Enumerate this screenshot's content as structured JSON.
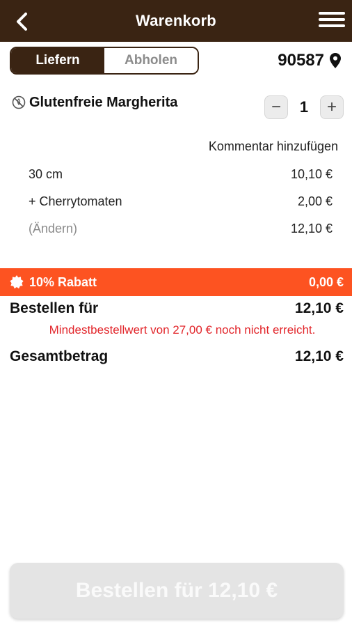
{
  "header": {
    "title": "Warenkorb",
    "back_icon": "chevron-left-icon",
    "menu_icon": "hamburger-menu-icon"
  },
  "delivery_toggle": {
    "options": [
      "Liefern",
      "Abholen"
    ],
    "selected": "Liefern"
  },
  "location": {
    "zip": "90587",
    "icon": "location-pin-icon"
  },
  "item": {
    "name": "Glutenfreie Margherita",
    "icon": "gluten-free-icon",
    "quantity": "1",
    "decrement_label": "−",
    "increment_label": "+",
    "comment_link": "Kommentar hinzufügen",
    "lines": [
      {
        "label": "30 cm",
        "price": "10,10 €"
      },
      {
        "label": "+ Cherrytomaten",
        "price": "2,00 €"
      },
      {
        "label": "(Ändern)",
        "price": "12,10 €"
      }
    ]
  },
  "discount": {
    "icon": "discount-badge-icon",
    "label": "10% Rabatt",
    "value": "0,00 €",
    "color": "#fd5321"
  },
  "summary": {
    "order_for_label": "Bestellen für",
    "order_for_value": "12,10 €",
    "warning": "Mindestbestellwert von 27,00 € noch nicht erreicht.",
    "total_label": "Gesamtbetrag",
    "total_value": "12,10 €"
  },
  "cta": {
    "label": "Bestellen für 12,10 €"
  },
  "colors": {
    "header_bg": "#3a2413",
    "accent": "#fd5321",
    "warning": "#e2262b"
  }
}
